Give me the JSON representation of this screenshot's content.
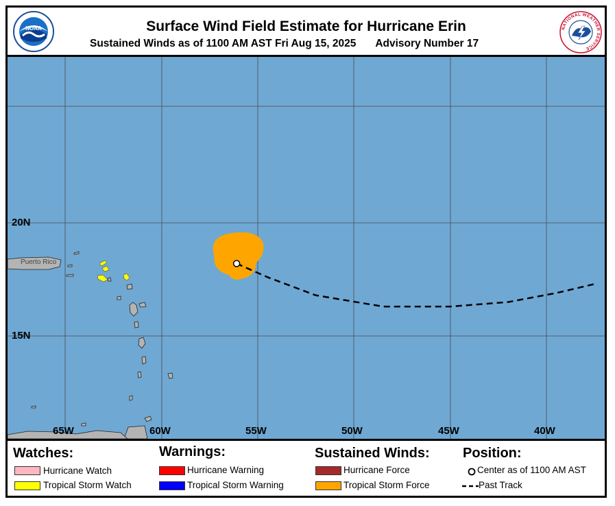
{
  "header": {
    "title": "Surface Wind Field Estimate for Hurricane Erin",
    "subtitle": "Sustained Winds as of 1100 AM AST Fri Aug 15, 2025",
    "advisory": "Advisory Number 17",
    "left_logo_text": "NOAA",
    "right_logo_text": "NATIONAL WEATHER SERVICE"
  },
  "map": {
    "lat_labels": [
      "20N",
      "15N"
    ],
    "lon_labels": [
      "65W",
      "60W",
      "55W",
      "50W",
      "45W",
      "40W"
    ],
    "place_label": "Puerto Rico",
    "ocean_color": "#6fa8d3",
    "land_color": "#b4b4b4",
    "storm_center": {
      "lon": -56.1,
      "lat": 18.2
    },
    "past_track": [
      {
        "lon": -56.1,
        "lat": 18.2
      },
      {
        "lon": -54.5,
        "lat": 17.6
      },
      {
        "lon": -52,
        "lat": 16.8
      },
      {
        "lon": -48.5,
        "lat": 16.3
      },
      {
        "lon": -45,
        "lat": 16.3
      },
      {
        "lon": -42,
        "lat": 16.5
      },
      {
        "lon": -39.5,
        "lat": 16.9
      },
      {
        "lon": -37.5,
        "lat": 17.3
      }
    ],
    "tropical_storm_force_color": "#ffa500",
    "tropical_storm_watch_color": "#ffff00"
  },
  "legend": {
    "watches": {
      "heading": "Watches:",
      "items": [
        {
          "label": "Hurricane Watch",
          "color": "#ffb6c1"
        },
        {
          "label": "Tropical Storm Watch",
          "color": "#ffff00"
        }
      ]
    },
    "warnings": {
      "heading": "Warnings:",
      "items": [
        {
          "label": "Hurricane Warning",
          "color": "#ff0000"
        },
        {
          "label": "Tropical Storm Warning",
          "color": "#0000ff"
        }
      ]
    },
    "winds": {
      "heading": "Sustained Winds:",
      "items": [
        {
          "label": "Hurricane Force",
          "color": "#a52a2a"
        },
        {
          "label": "Tropical Storm Force",
          "color": "#ffa500"
        }
      ]
    },
    "position": {
      "heading": "Position:",
      "center_label": "Center as of 1100 AM AST",
      "track_label": "Past Track"
    }
  }
}
